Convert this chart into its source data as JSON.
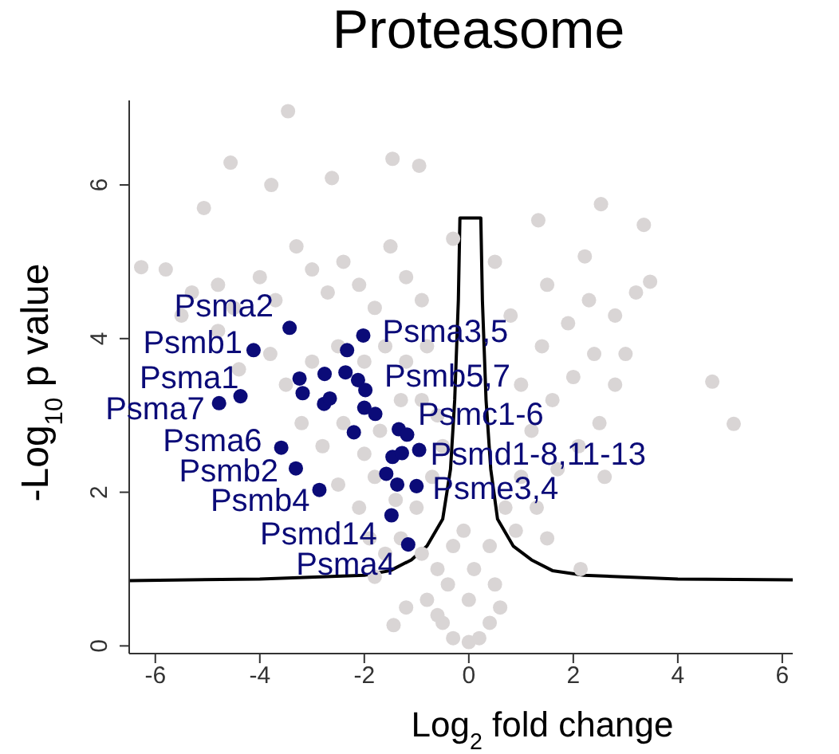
{
  "chart_data": {
    "type": "scatter",
    "title": "Proteasome",
    "xlabel": "Log$_{2}$ fold change",
    "ylabel": "-Log$_{10}$ p value",
    "xlim": [
      -6.5,
      6.2
    ],
    "ylim": [
      -0.1,
      7.1
    ],
    "xticks": [
      -6,
      -4,
      -2,
      0,
      2,
      4,
      6
    ],
    "yticks": [
      0,
      2,
      4,
      6
    ],
    "marker": "circle",
    "series": [
      {
        "color": "#d9d5d5",
        "x": [
          -3.46,
          -4.56,
          -1.46,
          -0.95,
          -2.62,
          -3.78,
          -5.07,
          2.53,
          1.33,
          3.35,
          4.66,
          5.07,
          -6.27,
          -5.8,
          -5.3,
          -4.8,
          -4.5,
          -4.0,
          -3.7,
          -3.3,
          -3.0,
          -2.7,
          -2.4,
          -2.1,
          -1.8,
          -1.5,
          -1.2,
          -0.9,
          -3.8,
          -3.5,
          -3.0,
          -2.5,
          -2.0,
          -1.6,
          -1.2,
          -0.8,
          -3.2,
          -2.8,
          -2.4,
          -2.0,
          -1.7,
          -1.3,
          -0.9,
          -0.6,
          -2.5,
          -2.1,
          -1.8,
          -1.4,
          -1.0,
          -0.7,
          -0.5,
          -1.9,
          -1.6,
          -1.3,
          -0.9,
          -0.6,
          -4.4,
          -4.8,
          -5.5,
          -1.8,
          -1.44,
          -1.2,
          -0.8,
          -0.5,
          -0.3,
          0,
          0.2,
          0.4,
          -0.4,
          0.5,
          -0.3,
          0.4,
          0,
          0.1,
          -0.1,
          0.6,
          -0.6,
          0.7,
          1.0,
          1.3,
          1.7,
          2.1,
          2.5,
          1.2,
          1.6,
          2.0,
          2.4,
          2.8,
          1.0,
          1.4,
          1.9,
          2.3,
          2.8,
          3.2,
          3.47,
          3.0,
          2.6,
          2.14,
          1.5,
          0.9,
          0.8,
          1.5,
          2.22,
          0.5,
          -0.3
        ],
        "values": [
          6.96,
          6.29,
          6.34,
          6.25,
          6.09,
          6.0,
          5.7,
          5.75,
          5.54,
          5.48,
          3.44,
          2.89,
          4.93,
          4.9,
          4.6,
          4.7,
          4.4,
          4.8,
          4.5,
          5.2,
          4.9,
          4.6,
          5.0,
          4.7,
          4.4,
          5.2,
          4.8,
          4.5,
          3.8,
          3.4,
          3.7,
          3.9,
          3.7,
          3.9,
          3.7,
          3.9,
          2.9,
          2.6,
          2.9,
          2.5,
          2.8,
          3.2,
          3.2,
          3.0,
          2.1,
          1.8,
          2.2,
          1.9,
          1.8,
          2.2,
          2.6,
          1.4,
          1.2,
          1.4,
          1.2,
          1.0,
          3.6,
          4.1,
          4.3,
          0.9,
          0.27,
          0.5,
          0.6,
          0.3,
          0.1,
          0.05,
          0.1,
          0.3,
          0.8,
          0.8,
          1.3,
          1.3,
          0.6,
          1.0,
          1.5,
          0.5,
          0.4,
          1.8,
          2.2,
          1.8,
          2.3,
          2.6,
          2.9,
          2.8,
          3.2,
          3.5,
          3.8,
          3.4,
          3.4,
          3.9,
          4.2,
          4.5,
          4.3,
          4.6,
          4.74,
          3.8,
          2.2,
          1.0,
          1.4,
          1.5,
          4.3,
          4.7,
          5.07,
          5.0,
          5.3
        ]
      },
      {
        "color": "#0b0b78",
        "x": [
          -3.43,
          -4.12,
          -4.37,
          -4.78,
          -2.02,
          -2.33,
          -3.24,
          -3.18,
          -2.76,
          -2.36,
          -2.12,
          -1.98,
          -2.77,
          -2.66,
          -2.0,
          -1.79,
          -2.2,
          -1.34,
          -1.18,
          -0.95,
          -1.46,
          -1.28,
          -1.58,
          -1.37,
          -1.0,
          -3.59,
          -3.31,
          -2.86,
          -1.48,
          -1.16
        ],
        "values": [
          4.14,
          3.85,
          3.25,
          3.16,
          4.04,
          3.85,
          3.48,
          3.29,
          3.54,
          3.56,
          3.46,
          3.33,
          3.15,
          3.22,
          3.1,
          3.02,
          2.78,
          2.82,
          2.75,
          2.55,
          2.46,
          2.51,
          2.24,
          2.1,
          2.08,
          2.58,
          2.31,
          2.03,
          1.7,
          1.32
        ]
      },
      {
        "type": "line",
        "color": "#000000",
        "marker": "none",
        "line_style": "solid",
        "x": [
          -6.5,
          -4,
          -2,
          -1.5,
          -1.1,
          -0.8,
          -0.5,
          -0.35,
          -0.27,
          -0.2,
          -0.17,
          0.23,
          0.26,
          0.33,
          0.42,
          0.55,
          0.85,
          1.2,
          1.6,
          2.2,
          4,
          6.2
        ],
        "values": [
          0.85,
          0.87,
          0.92,
          0.98,
          1.12,
          1.3,
          1.65,
          2.3,
          3.2,
          4.5,
          5.57,
          5.57,
          4.5,
          3.2,
          2.3,
          1.65,
          1.3,
          1.12,
          0.98,
          0.92,
          0.87,
          0.86
        ]
      }
    ],
    "annotations": [
      {
        "text": "Psma2",
        "x": -3.43,
        "y": 4.14
      },
      {
        "text": "Psmb1",
        "x": -4.12,
        "y": 3.85
      },
      {
        "text": "Psma1",
        "x": -4.37,
        "y": 3.25
      },
      {
        "text": "Psma7",
        "x": -4.78,
        "y": 3.16
      },
      {
        "text": "Psma3,5",
        "x": -2.02,
        "y": 4.04
      },
      {
        "text": "Psmb5,7",
        "x": -1.98,
        "y": 3.33
      },
      {
        "text": "Psmc1-6",
        "x": -1.34,
        "y": 2.82
      },
      {
        "text": "Psmd1-8,11-13",
        "x": -0.95,
        "y": 2.55
      },
      {
        "text": "Psme3,4",
        "x": -1.0,
        "y": 2.08
      },
      {
        "text": "Psma6",
        "x": -3.59,
        "y": 2.58
      },
      {
        "text": "Psmb2",
        "x": -3.31,
        "y": 2.31
      },
      {
        "text": "Psmb4",
        "x": -2.86,
        "y": 2.03
      },
      {
        "text": "Psmd14",
        "x": -1.48,
        "y": 1.7
      },
      {
        "text": "Psma4",
        "x": -1.16,
        "y": 1.32
      }
    ]
  }
}
